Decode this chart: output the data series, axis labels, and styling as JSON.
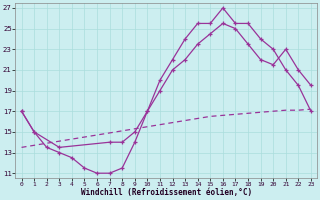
{
  "xlabel": "Windchill (Refroidissement éolien,°C)",
  "background_color": "#cceef0",
  "grid_color": "#aadddd",
  "line_color": "#993399",
  "xlim": [
    -0.5,
    23.5
  ],
  "ylim": [
    10.5,
    27.5
  ],
  "xticks": [
    0,
    1,
    2,
    3,
    4,
    5,
    6,
    7,
    8,
    9,
    10,
    11,
    12,
    13,
    14,
    15,
    16,
    17,
    18,
    19,
    20,
    21,
    22,
    23
  ],
  "yticks": [
    11,
    13,
    15,
    17,
    19,
    21,
    23,
    25,
    27
  ],
  "curve1_x": [
    0,
    1,
    2,
    3,
    4,
    5,
    6,
    7,
    8,
    9,
    10,
    11,
    12,
    13,
    14,
    15,
    16,
    17,
    18,
    19,
    20,
    21,
    22,
    23
  ],
  "curve1_y": [
    17,
    15,
    13.5,
    13,
    12.5,
    11.5,
    11,
    11,
    11.5,
    14,
    17,
    20,
    22,
    24,
    25.5,
    25.5,
    27,
    25.5,
    25.5,
    24,
    23,
    21,
    19.5,
    17
  ],
  "curve2_x": [
    0,
    1,
    3,
    7,
    8,
    9,
    10,
    11,
    12,
    13,
    14,
    15,
    16,
    17,
    18,
    19,
    20,
    21,
    22,
    23
  ],
  "curve2_y": [
    17,
    15,
    13.5,
    14,
    14,
    15,
    17,
    19,
    21,
    22,
    23.5,
    24.5,
    25.5,
    25,
    23.5,
    22,
    21.5,
    23,
    21,
    19.5
  ],
  "line3_x": [
    0,
    1,
    2,
    3,
    4,
    5,
    6,
    7,
    8,
    9,
    10,
    11,
    12,
    13,
    14,
    15,
    16,
    17,
    18,
    19,
    20,
    21,
    22,
    23
  ],
  "line3_y": [
    13.5,
    13.7,
    13.9,
    14.1,
    14.3,
    14.5,
    14.7,
    14.9,
    15.1,
    15.3,
    15.5,
    15.7,
    15.9,
    16.1,
    16.3,
    16.5,
    16.6,
    16.7,
    16.8,
    16.9,
    17.0,
    17.1,
    17.1,
    17.2
  ]
}
